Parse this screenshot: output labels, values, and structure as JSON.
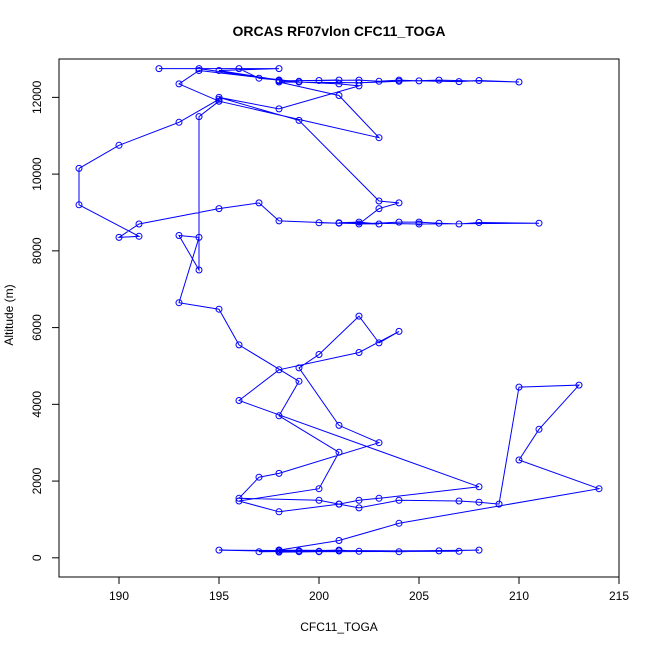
{
  "chart_data": {
    "type": "line",
    "title": "ORCAS RF07vlon CFC11_TOGA",
    "xlabel": "CFC11_TOGA",
    "ylabel": "Altitude (m)",
    "xlim": [
      187,
      215
    ],
    "ylim": [
      -500,
      13000
    ],
    "x_ticks": [
      190,
      195,
      200,
      205,
      210,
      215
    ],
    "y_ticks": [
      0,
      2000,
      4000,
      6000,
      8000,
      10000,
      12000
    ],
    "grid": false,
    "marker": "open-circle",
    "series_color": "#0000ff",
    "series": [
      {
        "x": [
          192,
          198,
          195,
          198,
          194,
          196,
          197,
          198,
          199,
          198,
          201,
          200,
          202,
          203,
          204,
          205,
          207,
          208,
          210,
          206,
          204,
          202,
          198,
          201,
          203,
          195,
          193,
          194,
          199,
          201,
          202,
          198,
          195,
          199,
          203,
          204,
          203,
          202,
          204,
          205,
          206,
          207,
          208,
          211,
          205,
          201,
          202,
          203,
          200,
          201,
          198,
          197,
          195,
          191,
          190,
          191,
          188,
          188,
          190,
          193,
          195,
          195,
          194,
          194,
          193,
          194,
          193,
          195,
          196,
          199,
          198,
          201,
          200,
          196,
          198,
          201,
          202,
          203,
          208,
          196,
          198,
          202,
          204,
          203,
          202,
          200,
          199,
          201,
          203,
          198,
          197,
          196,
          200,
          201,
          202,
          204,
          207,
          208,
          209,
          210,
          213,
          211,
          210,
          214,
          204,
          201,
          198,
          199,
          198,
          201,
          202,
          204,
          206,
          208,
          198,
          199,
          201,
          197,
          200,
          198,
          195,
          199,
          207,
          198,
          200,
          201
        ],
        "y": [
          12750,
          12750,
          12700,
          12450,
          12750,
          12750,
          12500,
          12450,
          12420,
          12430,
          12450,
          12440,
          12450,
          12420,
          12450,
          12430,
          12410,
          12440,
          12400,
          12450,
          12420,
          12380,
          12400,
          12050,
          10950,
          11900,
          12350,
          12700,
          12400,
          12350,
          12300,
          11700,
          12000,
          11400,
          9300,
          9250,
          9100,
          8700,
          8750,
          8750,
          8720,
          8700,
          8740,
          8720,
          8700,
          8730,
          8750,
          8700,
          8730,
          8720,
          8780,
          9250,
          9100,
          8700,
          8350,
          8380,
          9200,
          10150,
          10750,
          11350,
          11950,
          11900,
          11500,
          7500,
          8400,
          8350,
          6650,
          6480,
          5550,
          4600,
          3700,
          2750,
          1800,
          1480,
          1200,
          1400,
          1500,
          1550,
          1850,
          4100,
          4900,
          5350,
          5900,
          5600,
          6300,
          5300,
          4950,
          3450,
          3000,
          2200,
          2100,
          1550,
          1500,
          1400,
          1300,
          1500,
          1480,
          1450,
          1400,
          4450,
          4500,
          3350,
          2550,
          1800,
          900,
          450,
          200,
          180,
          160,
          200,
          170,
          160,
          180,
          200,
          150,
          170,
          180,
          160,
          170,
          190,
          200,
          160,
          170,
          200,
          160,
          180
        ]
      }
    ]
  }
}
